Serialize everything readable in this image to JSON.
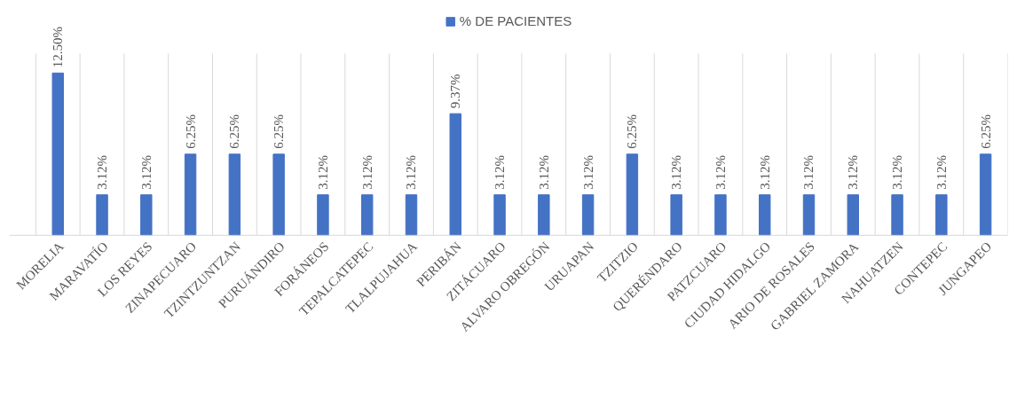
{
  "chart_data": {
    "type": "bar",
    "legend": "top",
    "grid": "x",
    "categories": [
      "MORELIA",
      "MARAVATÍO",
      "LOS REYES",
      "ZINAPECUARO",
      "TZINTZUNTZAN",
      "PURUÁNDIRO",
      "FORÁNEOS",
      "TEPALCATEPEC",
      "TLALPUJAHUA",
      "PERIBÁN",
      "ZITÁCUARO",
      "ALVARO OBREGÓN",
      "URUAPAN",
      "TZITZIO",
      "QUERÉNDARO",
      "PATZCUARO",
      "CIUDAD HIDALGO",
      "ARIO DE ROSALES",
      "GABRIEL ZAMORA",
      "NAHUATZEN",
      "CONTEPEC",
      "JUNGAPEO"
    ],
    "series": [
      {
        "name": "% DE PACIENTES",
        "color": "#4472c4",
        "values": [
          12.5,
          3.12,
          3.12,
          6.25,
          6.25,
          6.25,
          3.12,
          3.12,
          3.12,
          9.37,
          3.12,
          3.12,
          3.12,
          6.25,
          3.12,
          3.12,
          3.12,
          3.12,
          3.12,
          3.12,
          3.12,
          6.25
        ],
        "value_labels": [
          "12.50%",
          "3.12%",
          "3.12%",
          "6.25%",
          "6.25%",
          "6.25%",
          "3.12%",
          "3.12%",
          "3.12%",
          "9.37%",
          "3.12%",
          "3.12%",
          "3.12%",
          "6.25%",
          "3.12%",
          "3.12%",
          "3.12%",
          "3.12%",
          "3.12%",
          "3.12%",
          "3.12%",
          "6.25%"
        ]
      }
    ]
  }
}
